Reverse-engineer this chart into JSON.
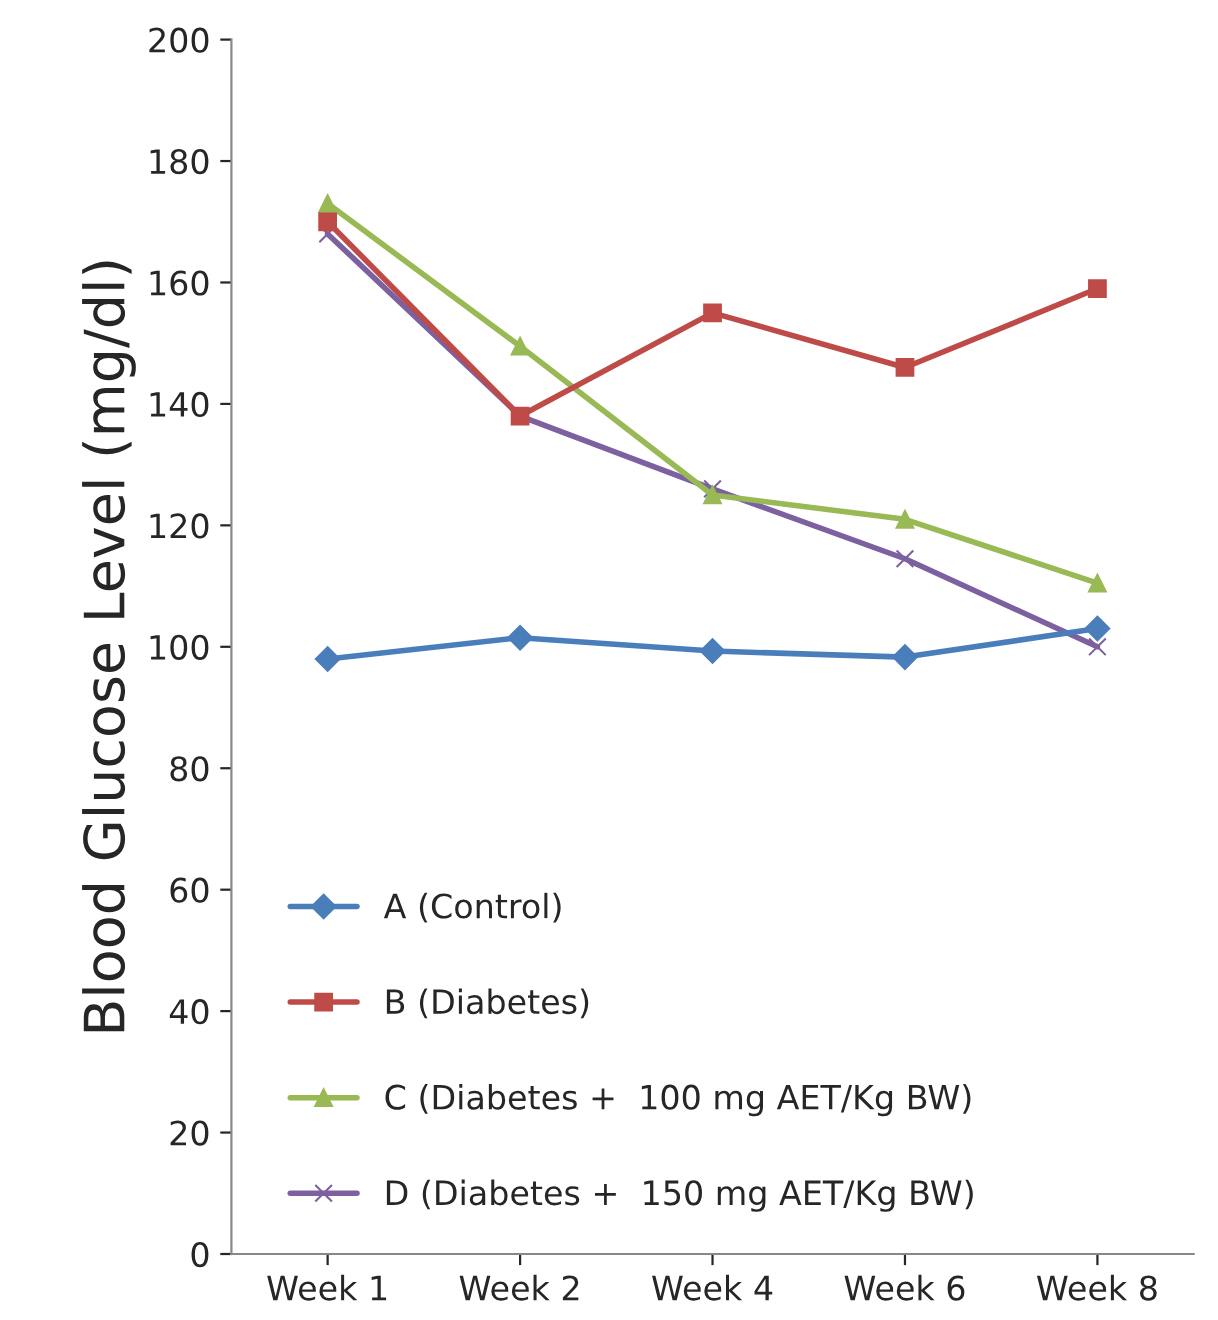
{
  "chart_data": {
    "type": "line",
    "ylabel": "Blood Glucose Level (mg/dl)",
    "categories": [
      "Week 1",
      "Week 2",
      "Week 4",
      "Week 6",
      "Week 8"
    ],
    "series": [
      {
        "name": "A (Control)",
        "color": "#4a7ebb",
        "marker": "diamond",
        "values": [
          98,
          101.5,
          99.3,
          98.3,
          103
        ]
      },
      {
        "name": "B (Diabetes)",
        "color": "#be4b48",
        "marker": "square",
        "values": [
          170,
          138,
          155,
          146,
          159
        ]
      },
      {
        "name": "C (Diabetes +  100 mg AET/Kg BW)",
        "color": "#98b954",
        "marker": "triangle",
        "values": [
          173,
          149.5,
          125,
          121,
          110.5
        ]
      },
      {
        "name": "D (Diabetes +  150 mg AET/Kg BW)",
        "color": "#7d60a0",
        "marker": "cross",
        "values": [
          168,
          138,
          126,
          114.5,
          100
        ]
      }
    ],
    "ylim": [
      0,
      200
    ],
    "yticks": [
      0,
      20,
      40,
      60,
      80,
      100,
      120,
      140,
      160,
      180,
      200
    ],
    "grid": false,
    "legend": "bottom left",
    "line_style": "solid"
  }
}
